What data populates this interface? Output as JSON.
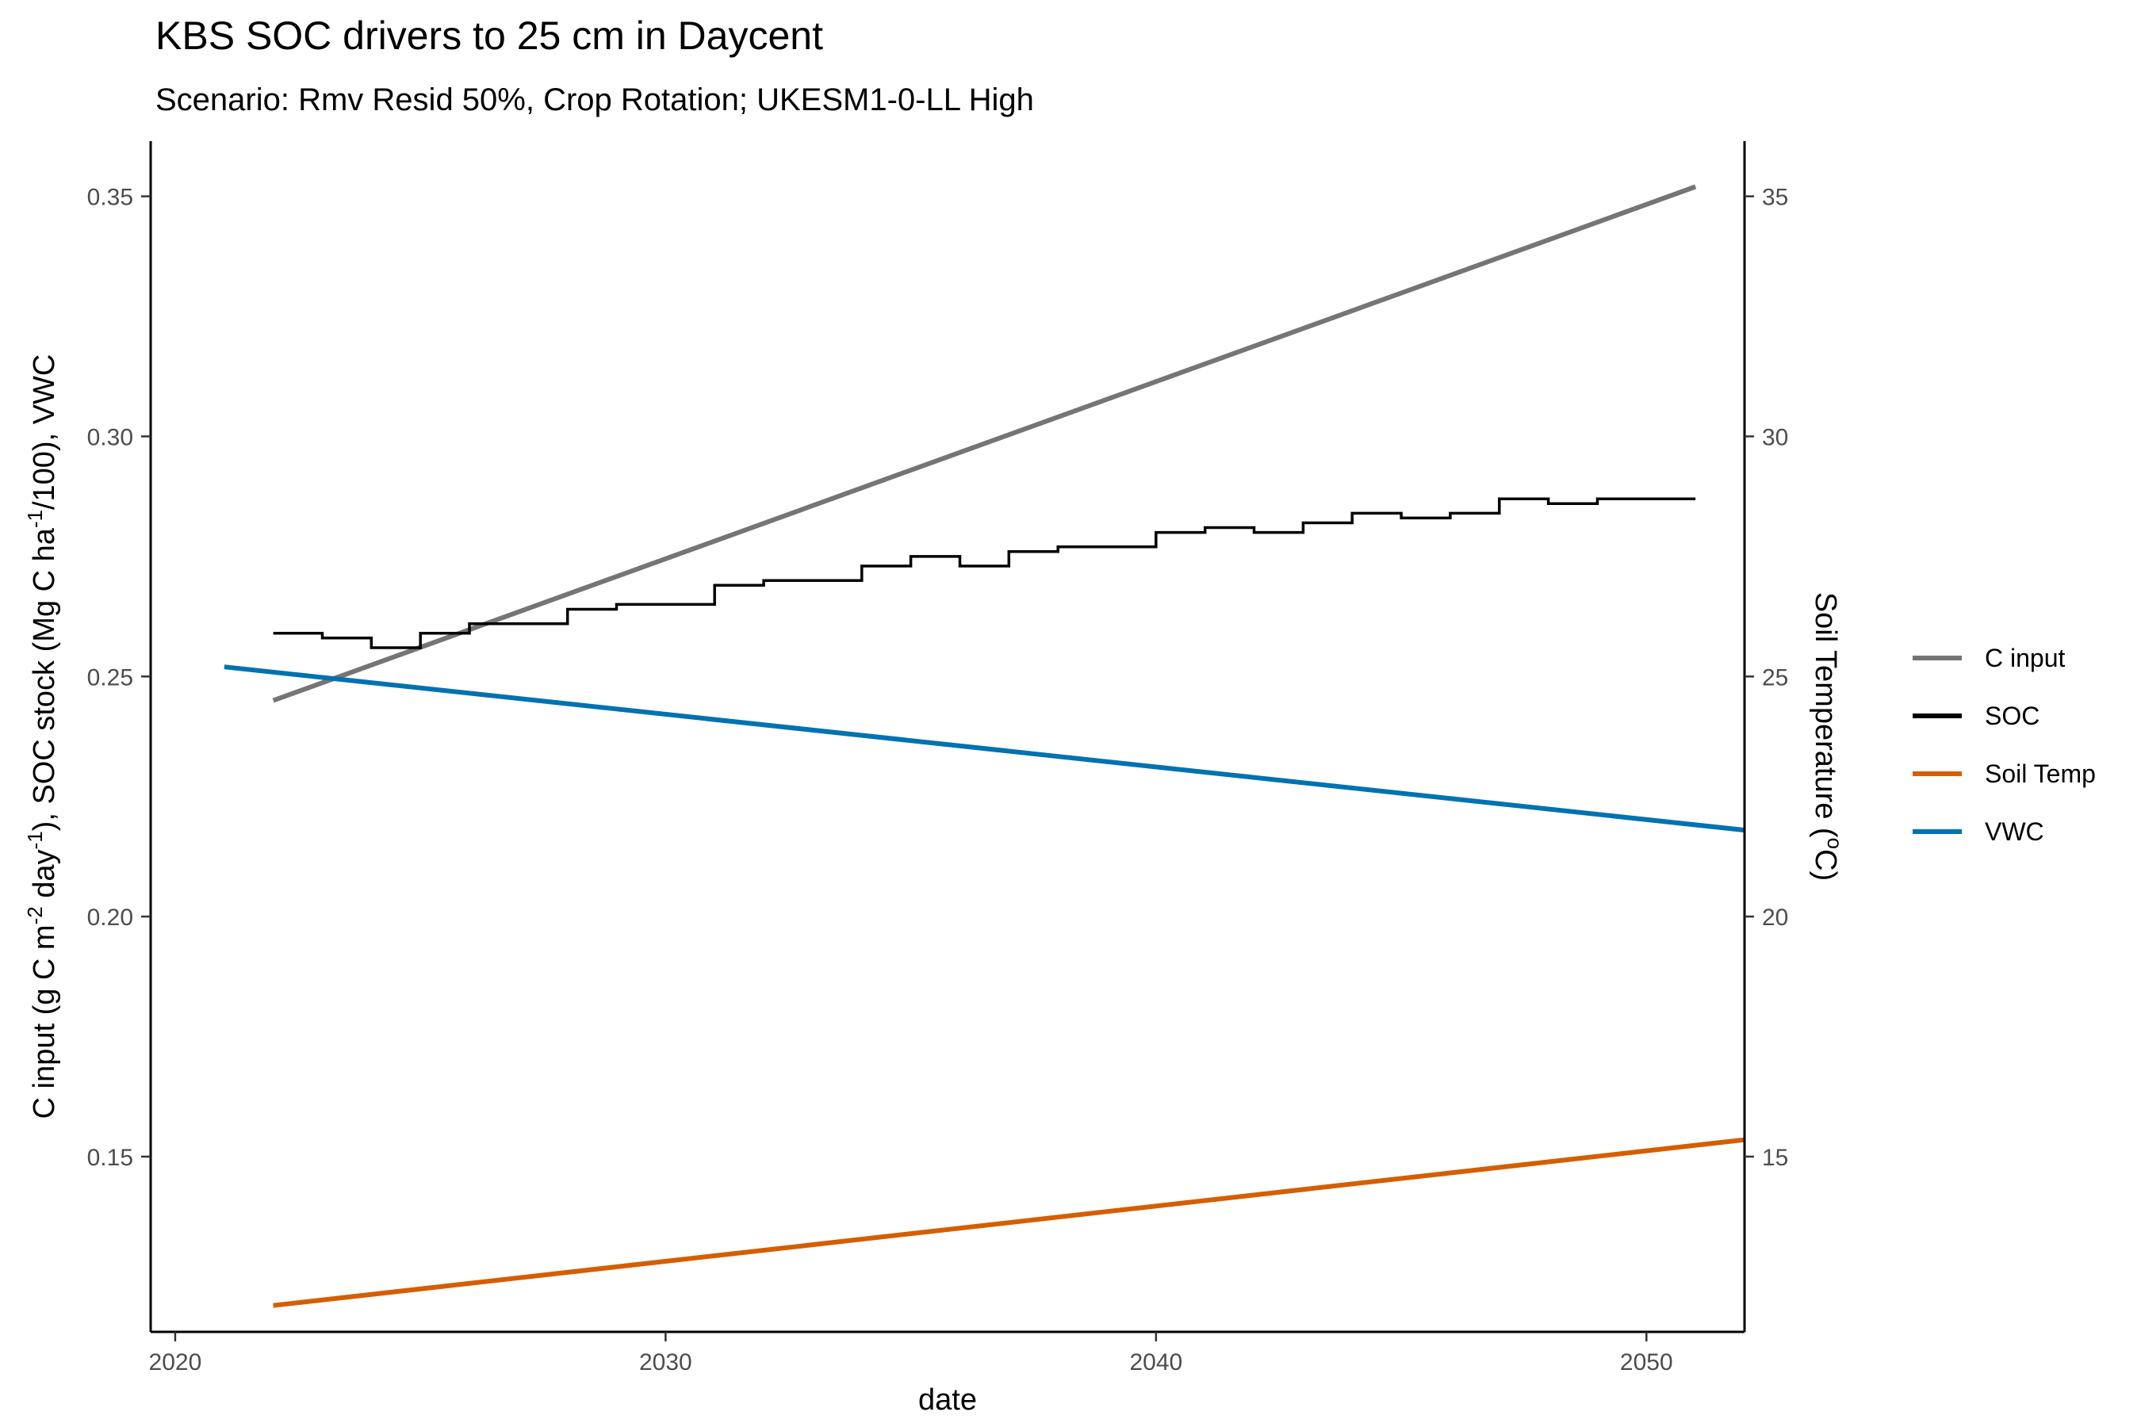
{
  "chart_data": {
    "type": "line",
    "title": "KBS SOC drivers to 25 cm in Daycent",
    "subtitle": "Scenario: Rmv Resid 50%, Crop Rotation; UKESM1-0-LL High",
    "xlabel": "date",
    "ylabel": {
      "parts": [
        {
          "t": "C input (g C m",
          "sup": false
        },
        {
          "t": "-2",
          "sup": true
        },
        {
          "t": " day",
          "sup": false
        },
        {
          "t": "-1",
          "sup": true
        },
        {
          "t": "), SOC stock (Mg C ha",
          "sup": false
        },
        {
          "t": "-1",
          "sup": true
        },
        {
          "t": "/100), VWC",
          "sup": false
        }
      ]
    },
    "y2label": {
      "parts": [
        {
          "t": "Soil Temperature (",
          "sup": false
        },
        {
          "t": "o",
          "sup": true
        },
        {
          "t": "C)",
          "sup": false
        }
      ]
    },
    "xlim": [
      2019.5,
      2052.0
    ],
    "ylim": [
      0.1135,
      0.3615
    ],
    "y2lim": [
      11.35,
      36.15
    ],
    "y2_transform": "y2 = y * 100",
    "x_ticks": [
      2020,
      2030,
      2040,
      2050
    ],
    "y_ticks": [
      0.15,
      0.2,
      0.25,
      0.3,
      0.35
    ],
    "y_tick_labels": [
      "0.15",
      "0.20",
      "0.25",
      "0.30",
      "0.35"
    ],
    "y2_ticks": [
      15,
      20,
      25,
      30,
      35
    ],
    "grid": false,
    "legend_position": "right",
    "series": [
      {
        "name": "C input",
        "color": "#757575",
        "step": false,
        "axis": "left",
        "x": [
          2022.0,
          2051.0
        ],
        "y": [
          0.245,
          0.352
        ]
      },
      {
        "name": "SOC",
        "color": "#000000",
        "step": true,
        "axis": "left",
        "x": [
          2022,
          2023,
          2024,
          2025,
          2026,
          2027,
          2028,
          2029,
          2030,
          2031,
          2032,
          2033,
          2034,
          2035,
          2036,
          2037,
          2038,
          2039,
          2040,
          2041,
          2042,
          2043,
          2044,
          2045,
          2046,
          2047,
          2048,
          2049,
          2050,
          2051
        ],
        "y": [
          0.259,
          0.258,
          0.256,
          0.259,
          0.261,
          0.261,
          0.264,
          0.265,
          0.265,
          0.269,
          0.27,
          0.27,
          0.273,
          0.275,
          0.273,
          0.276,
          0.277,
          0.277,
          0.28,
          0.281,
          0.28,
          0.282,
          0.284,
          0.283,
          0.284,
          0.287,
          0.286,
          0.287,
          0.287,
          0.287
        ]
      },
      {
        "name": "Soil Temp",
        "color": "#D55E00",
        "step": false,
        "axis": "right",
        "x": [
          2022.0,
          2052.0
        ],
        "y": [
          11.9,
          15.35
        ]
      },
      {
        "name": "VWC",
        "color": "#0072B2",
        "step": false,
        "axis": "left",
        "x": [
          2021.0,
          2052.0
        ],
        "y": [
          0.252,
          0.218
        ]
      }
    ]
  }
}
